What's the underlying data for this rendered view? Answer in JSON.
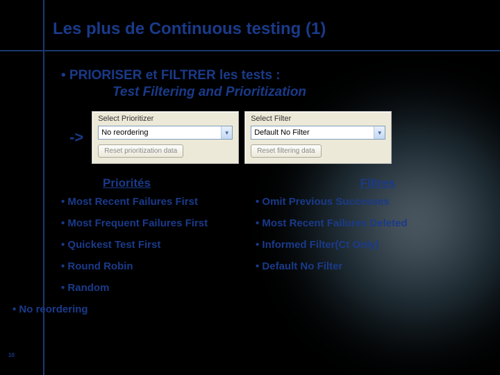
{
  "title": "Les plus de Continuous testing (1)",
  "bullet1": "• PRIORISER et FILTRER les tests :",
  "subtitle": "Test Filtering and Prioritization",
  "arrow": "->",
  "panels": {
    "prioritizer": {
      "title": "Select Prioritizer",
      "value": "No reordering",
      "reset": "Reset prioritization data"
    },
    "filter": {
      "title": "Select Filter",
      "value": "Default No Filter",
      "reset": "Reset filtering data"
    }
  },
  "priorities": {
    "header": "Priorités",
    "items": [
      "• Most Recent Failures First",
      "• Most Frequent Failures First",
      "• Quickest Test First",
      "• Round Robin",
      "• Random",
      "• No reordering"
    ]
  },
  "filters": {
    "header": "Filtres",
    "items": [
      "• Omit Previous Successes",
      "• Most Recent Failures Deleted",
      "• Informed Filter(Ct Only)",
      "• Default No Filter"
    ]
  },
  "pageNum": "10"
}
